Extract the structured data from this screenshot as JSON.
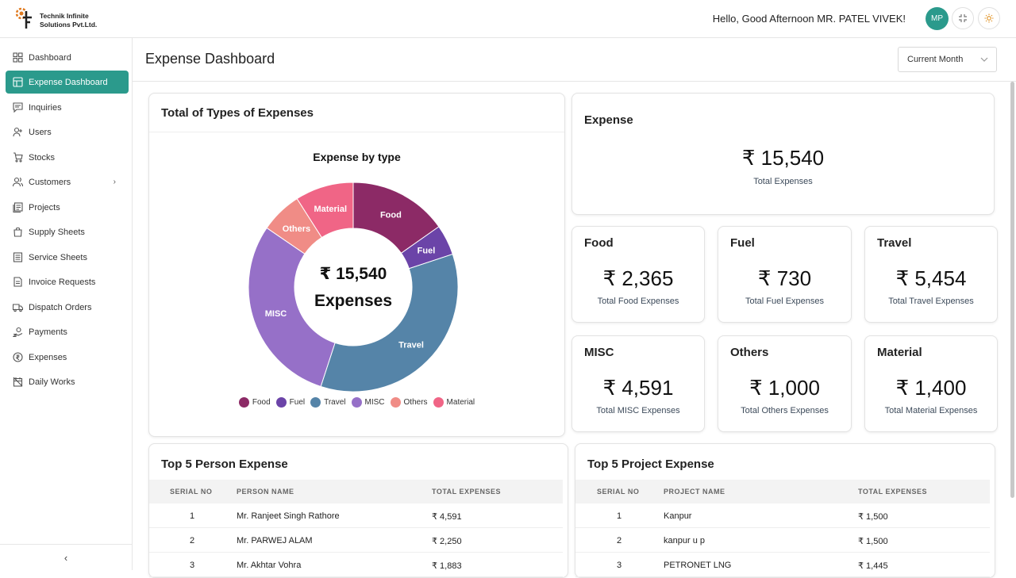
{
  "app": {
    "company_line1": "Technik Infinite",
    "company_line2": "Solutions Pvt.Ltd.",
    "greeting": "Hello, Good Afternoon MR. PATEL VIVEK!",
    "avatar_initials": "MP",
    "accent_color": "#2b9a8c"
  },
  "sidebar": {
    "items": [
      {
        "label": "Dashboard",
        "icon": "grid-icon"
      },
      {
        "label": "Expense Dashboard",
        "icon": "layout-icon",
        "active": true
      },
      {
        "label": "Inquiries",
        "icon": "message-icon"
      },
      {
        "label": "Users",
        "icon": "user-add-icon"
      },
      {
        "label": "Stocks",
        "icon": "cart-icon"
      },
      {
        "label": "Customers",
        "icon": "users-icon",
        "has_submenu": true
      },
      {
        "label": "Projects",
        "icon": "projects-icon"
      },
      {
        "label": "Supply Sheets",
        "icon": "bag-icon"
      },
      {
        "label": "Service Sheets",
        "icon": "sheet-icon"
      },
      {
        "label": "Invoice Requests",
        "icon": "invoice-icon"
      },
      {
        "label": "Dispatch Orders",
        "icon": "truck-icon"
      },
      {
        "label": "Payments",
        "icon": "payment-icon"
      },
      {
        "label": "Expenses",
        "icon": "rupee-circle-icon"
      },
      {
        "label": "Daily Works",
        "icon": "calendar-off-icon"
      }
    ],
    "collapse_glyph": "‹"
  },
  "header": {
    "page_title": "Expense Dashboard",
    "period_select": "Current Month"
  },
  "pie_card": {
    "title": "Total of Types of Expenses",
    "chart_title": "Expense by type",
    "center_amount": "₹ 15,540",
    "center_label": "Expenses"
  },
  "chart_data": {
    "type": "pie",
    "title": "Expense by type",
    "categories": [
      "Food",
      "Fuel",
      "Travel",
      "MISC",
      "Others",
      "Material"
    ],
    "values": [
      2365,
      730,
      5454,
      4591,
      1000,
      1400
    ],
    "colors": [
      "#8c2a66",
      "#6b44a8",
      "#5584a8",
      "#9670c8",
      "#f08c86",
      "#f06586"
    ],
    "legend_position": "bottom",
    "donut": true
  },
  "summary": {
    "title": "Expense",
    "amount": "₹ 15,540",
    "label": "Total Expenses"
  },
  "type_cards": [
    {
      "title": "Food",
      "amount": "₹ 2,365",
      "label": "Total Food Expenses"
    },
    {
      "title": "Fuel",
      "amount": "₹ 730",
      "label": "Total Fuel Expenses"
    },
    {
      "title": "Travel",
      "amount": "₹ 5,454",
      "label": "Total Travel Expenses"
    },
    {
      "title": "MISC",
      "amount": "₹ 4,591",
      "label": "Total MISC Expenses"
    },
    {
      "title": "Others",
      "amount": "₹ 1,000",
      "label": "Total Others Expenses"
    },
    {
      "title": "Material",
      "amount": "₹ 1,400",
      "label": "Total Material Expenses"
    }
  ],
  "person_table": {
    "title": "Top 5 Person Expense",
    "columns": [
      "SERIAL NO",
      "PERSON NAME",
      "TOTAL EXPENSES"
    ],
    "rows": [
      [
        "1",
        "Mr. Ranjeet Singh Rathore",
        "₹ 4,591"
      ],
      [
        "2",
        "Mr. PARWEJ ALAM",
        "₹ 2,250"
      ],
      [
        "3",
        "Mr. Akhtar Vohra",
        "₹ 1,883"
      ]
    ]
  },
  "project_table": {
    "title": "Top 5 Project Expense",
    "columns": [
      "SERIAL NO",
      "PROJECT NAME",
      "TOTAL EXPENSES"
    ],
    "rows": [
      [
        "1",
        "Kanpur",
        "₹ 1,500"
      ],
      [
        "2",
        "kanpur u p",
        "₹ 1,500"
      ],
      [
        "3",
        "PETRONET LNG",
        "₹ 1,445"
      ]
    ]
  }
}
